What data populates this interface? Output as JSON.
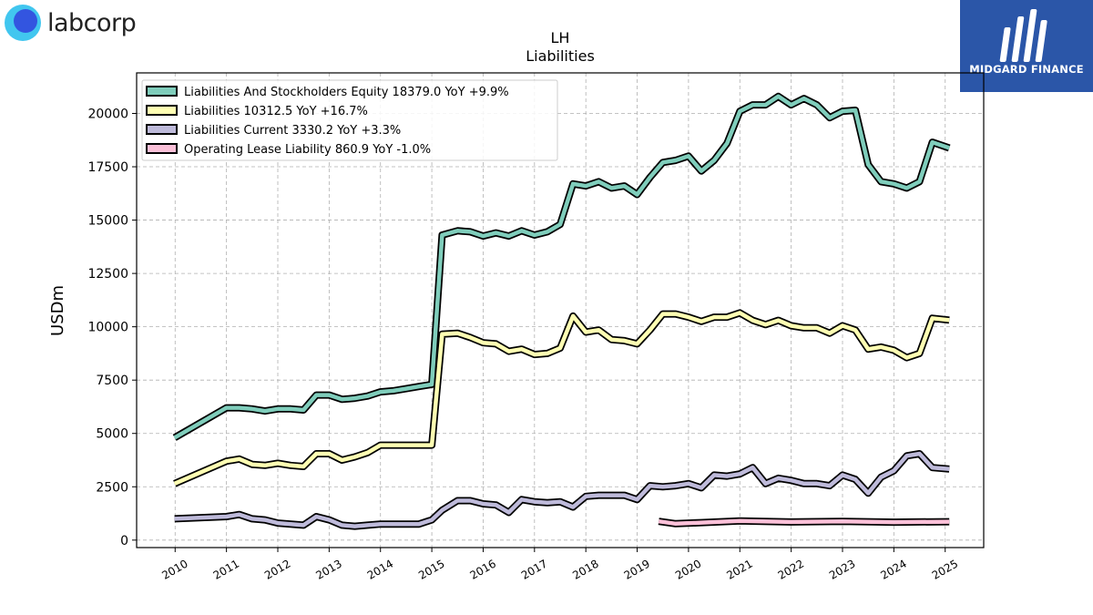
{
  "brand": {
    "company_wordmark": "labcorp",
    "badge_name": "MIDGARD FINANCE",
    "colors": {
      "badge_bg": "#2b56a8",
      "logo_light": "#41c6ef",
      "logo_dark": "#3355e0"
    }
  },
  "chart_data": {
    "type": "line",
    "title": "LH",
    "subtitle": "Liabilities",
    "ylabel": "USDm",
    "xlabel": "",
    "ylim": [
      -350,
      21900
    ],
    "xlim": [
      2009.25,
      2025.75
    ],
    "yticks": [
      0,
      2500,
      5000,
      7500,
      10000,
      12500,
      15000,
      17500,
      20000
    ],
    "ytick_labels": [
      "0",
      "2500",
      "5000",
      "7500",
      "10000",
      "12500",
      "15000",
      "17500",
      "20000"
    ],
    "xticks": [
      2010,
      2011,
      2012,
      2013,
      2014,
      2015,
      2016,
      2017,
      2018,
      2019,
      2020,
      2021,
      2022,
      2023,
      2024,
      2025
    ],
    "xtick_labels": [
      "2010",
      "2011",
      "2012",
      "2013",
      "2014",
      "2015",
      "2016",
      "2017",
      "2018",
      "2019",
      "2020",
      "2021",
      "2022",
      "2023",
      "2024",
      "2025"
    ],
    "grid": true,
    "legend_position": "top-left",
    "series": [
      {
        "name": "Liabilities And Stockholders Equity",
        "legend": "Liabilities And Stockholders Equity  18379.0 YoY +9.9%",
        "color": "#7fcdbb",
        "x": [
          2009.99,
          2011.0,
          2011.25,
          2011.5,
          2011.75,
          2012.0,
          2012.25,
          2012.5,
          2012.75,
          2013.0,
          2013.25,
          2013.5,
          2013.75,
          2014.0,
          2014.25,
          2014.5,
          2014.75,
          2015.0,
          2015.2,
          2015.5,
          2015.75,
          2016.0,
          2016.25,
          2016.5,
          2016.75,
          2017.0,
          2017.25,
          2017.5,
          2017.75,
          2018.0,
          2018.25,
          2018.5,
          2018.75,
          2019.0,
          2019.25,
          2019.5,
          2019.75,
          2020.0,
          2020.25,
          2020.5,
          2020.75,
          2021.0,
          2021.25,
          2021.5,
          2021.75,
          2022.0,
          2022.25,
          2022.5,
          2022.75,
          2023.0,
          2023.25,
          2023.5,
          2023.75,
          2024.0,
          2024.25,
          2024.5,
          2024.75,
          2025.08
        ],
        "values": [
          4800,
          6200,
          6200,
          6150,
          6050,
          6150,
          6150,
          6100,
          6800,
          6800,
          6600,
          6650,
          6750,
          6950,
          7000,
          7100,
          7200,
          7300,
          14300,
          14500,
          14450,
          14250,
          14400,
          14250,
          14500,
          14300,
          14450,
          14800,
          16700,
          16600,
          16800,
          16500,
          16600,
          16200,
          17000,
          17700,
          17800,
          18000,
          17300,
          17800,
          18600,
          20100,
          20400,
          20400,
          20800,
          20400,
          20700,
          20400,
          19800,
          20100,
          20150,
          17600,
          16800,
          16700,
          16500,
          16800,
          18650,
          18379
        ]
      },
      {
        "name": "Liabilities",
        "legend": "Liabilities  10312.5 YoY +16.7%",
        "color": "#ffffb3",
        "x": [
          2009.99,
          2011.0,
          2011.25,
          2011.5,
          2011.75,
          2012.0,
          2012.25,
          2012.5,
          2012.75,
          2013.0,
          2013.25,
          2013.5,
          2013.75,
          2014.0,
          2014.25,
          2014.5,
          2014.75,
          2015.0,
          2015.2,
          2015.5,
          2015.75,
          2016.0,
          2016.25,
          2016.5,
          2016.75,
          2017.0,
          2017.25,
          2017.5,
          2017.75,
          2018.0,
          2018.25,
          2018.5,
          2018.75,
          2019.0,
          2019.25,
          2019.5,
          2019.75,
          2020.0,
          2020.25,
          2020.5,
          2020.75,
          2021.0,
          2021.25,
          2021.5,
          2021.75,
          2022.0,
          2022.25,
          2022.5,
          2022.75,
          2023.0,
          2023.25,
          2023.5,
          2023.75,
          2024.0,
          2024.25,
          2024.5,
          2024.75,
          2025.08
        ],
        "values": [
          2650,
          3700,
          3800,
          3550,
          3500,
          3600,
          3500,
          3450,
          4050,
          4050,
          3750,
          3900,
          4100,
          4450,
          4450,
          4450,
          4450,
          4450,
          9650,
          9700,
          9500,
          9250,
          9200,
          8850,
          8950,
          8700,
          8750,
          9000,
          10500,
          9750,
          9850,
          9400,
          9350,
          9200,
          9850,
          10600,
          10600,
          10450,
          10250,
          10450,
          10450,
          10650,
          10300,
          10100,
          10300,
          10050,
          9950,
          9950,
          9700,
          10050,
          9850,
          8950,
          9050,
          8900,
          8550,
          8750,
          10400,
          10312
        ]
      },
      {
        "name": "Liabilities Current",
        "legend": "Liabilities Current  3330.2 YoY +3.3%",
        "color": "#bebada",
        "x": [
          2009.99,
          2011.0,
          2011.25,
          2011.5,
          2011.75,
          2012.0,
          2012.25,
          2012.5,
          2012.75,
          2013.0,
          2013.25,
          2013.5,
          2013.75,
          2014.0,
          2014.25,
          2014.5,
          2014.75,
          2015.0,
          2015.2,
          2015.5,
          2015.75,
          2016.0,
          2016.25,
          2016.5,
          2016.75,
          2017.0,
          2017.25,
          2017.5,
          2017.75,
          2018.0,
          2018.25,
          2018.5,
          2018.75,
          2019.0,
          2019.25,
          2019.5,
          2019.75,
          2020.0,
          2020.25,
          2020.5,
          2020.75,
          2021.0,
          2021.25,
          2021.5,
          2021.75,
          2022.0,
          2022.25,
          2022.5,
          2022.75,
          2023.0,
          2023.25,
          2023.5,
          2023.75,
          2024.0,
          2024.25,
          2024.5,
          2024.75,
          2025.08
        ],
        "values": [
          1000,
          1100,
          1200,
          1000,
          950,
          800,
          750,
          700,
          1100,
          950,
          700,
          650,
          700,
          750,
          750,
          750,
          750,
          950,
          1400,
          1850,
          1850,
          1700,
          1650,
          1300,
          1900,
          1800,
          1750,
          1800,
          1550,
          2050,
          2100,
          2100,
          2100,
          1900,
          2550,
          2500,
          2550,
          2650,
          2450,
          3050,
          3000,
          3100,
          3400,
          2650,
          2900,
          2800,
          2650,
          2650,
          2550,
          3050,
          2850,
          2200,
          2950,
          3250,
          3950,
          4050,
          3400,
          3330
        ]
      },
      {
        "name": "Operating Lease Liability",
        "legend": "Operating Lease Liability  860.9 YoY -1.0%",
        "color": "#fbc0d8",
        "x": [
          2019.42,
          2019.75,
          2020.25,
          2021.0,
          2022.0,
          2023.0,
          2024.0,
          2025.08
        ],
        "values": [
          880,
          770,
          820,
          900,
          850,
          880,
          840,
          861
        ]
      }
    ]
  }
}
